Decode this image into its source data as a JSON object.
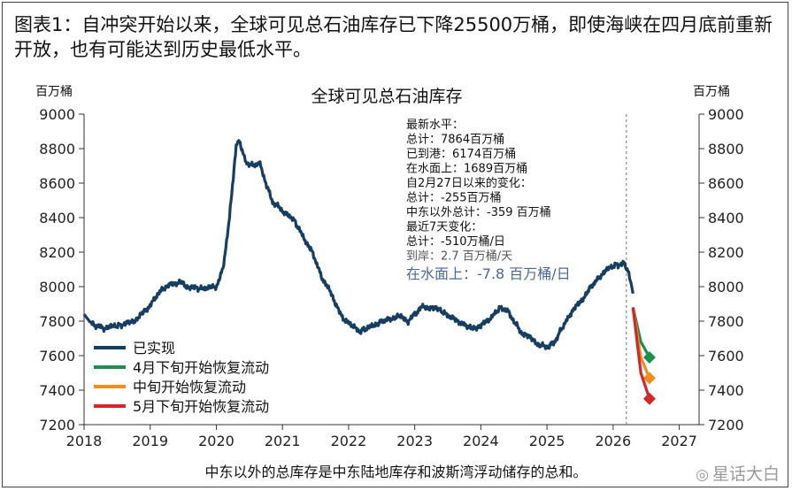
{
  "header": {
    "line1": "图表1：自冲突开始以来，全球可见总石油库存已下降25500万桶，即使海峡在四月底前重新",
    "line2": "开放，也有可能达到历史最低水平。"
  },
  "footnote": "中东以外的总库存是中东陆地库存和波斯湾浮动储存的总和。",
  "watermark": "星话大白",
  "chart_data": {
    "type": "line",
    "title": "全球可见总石油库存",
    "ylabel_left": "百万桶",
    "ylabel_right": "百万桶",
    "ylim": [
      7200,
      9000
    ],
    "yticks": [
      "7200",
      "7400",
      "7600",
      "7800",
      "8000",
      "8200",
      "8400",
      "8600",
      "8800",
      "9000"
    ],
    "xlim": [
      2018,
      2027.3
    ],
    "xticks": [
      "2018",
      "2019",
      "2020",
      "2021",
      "2022",
      "2023",
      "2024",
      "2025",
      "2026",
      "2027"
    ],
    "latest_marker_x": 2026.2,
    "legend_position": "bottom-left",
    "series": [
      {
        "name": "已实现",
        "color": "#163e63",
        "x": [
          2018.0,
          2018.1,
          2018.2,
          2018.3,
          2018.45,
          2018.6,
          2018.75,
          2018.9,
          2019.0,
          2019.1,
          2019.2,
          2019.3,
          2019.45,
          2019.55,
          2019.7,
          2019.85,
          2020.0,
          2020.1,
          2020.2,
          2020.3,
          2020.35,
          2020.4,
          2020.45,
          2020.55,
          2020.65,
          2020.75,
          2020.85,
          2020.95,
          2021.05,
          2021.15,
          2021.3,
          2021.45,
          2021.6,
          2021.75,
          2021.85,
          2021.95,
          2022.05,
          2022.15,
          2022.3,
          2022.45,
          2022.6,
          2022.75,
          2022.9,
          2023.0,
          2023.1,
          2023.25,
          2023.4,
          2023.55,
          2023.7,
          2023.85,
          2024.0,
          2024.15,
          2024.3,
          2024.4,
          2024.5,
          2024.6,
          2024.75,
          2024.9,
          2025.0,
          2025.1,
          2025.2,
          2025.35,
          2025.5,
          2025.65,
          2025.8,
          2025.95,
          2026.05,
          2026.1,
          2026.15,
          2026.2,
          2026.25,
          2026.3
        ],
        "y": [
          7840,
          7790,
          7770,
          7760,
          7770,
          7780,
          7800,
          7850,
          7890,
          7950,
          7990,
          8010,
          8030,
          8000,
          7990,
          7990,
          8000,
          8100,
          8400,
          8820,
          8850,
          8780,
          8720,
          8700,
          8720,
          8600,
          8490,
          8460,
          8420,
          8400,
          8300,
          8200,
          8050,
          7950,
          7860,
          7800,
          7780,
          7740,
          7760,
          7790,
          7810,
          7830,
          7800,
          7840,
          7880,
          7880,
          7860,
          7820,
          7790,
          7760,
          7770,
          7820,
          7880,
          7860,
          7800,
          7740,
          7700,
          7660,
          7650,
          7670,
          7740,
          7840,
          7910,
          7990,
          8060,
          8110,
          8130,
          8120,
          8140,
          8110,
          8060,
          7960
        ]
      },
      {
        "name": "4月下旬开始恢复流动",
        "color": "#1c8f4c",
        "x": [
          2026.3,
          2026.42,
          2026.55
        ],
        "y": [
          7880,
          7680,
          7590
        ]
      },
      {
        "name": "中旬开始恢复流动",
        "color": "#f28c1e",
        "x": [
          2026.3,
          2026.42,
          2026.55
        ],
        "y": [
          7880,
          7590,
          7470
        ]
      },
      {
        "name": "5月下旬开始恢复流动",
        "color": "#d2262b",
        "x": [
          2026.3,
          2026.42,
          2026.55
        ],
        "y": [
          7880,
          7500,
          7350
        ]
      }
    ],
    "annotation": {
      "lines": [
        "最新水平：",
        "总计：7864百万桶",
        "已到港：6174百万桶",
        "在水面上：1689百万桶",
        "自2月27日以来的变化：",
        "总计：-255百万桶",
        "中东以外总计：-359 百万桶",
        "最近7天变化：",
        "总计：-510万桶/日",
        "到岸：2.7 百万桶/天",
        "在水面上：-7.8 百万桶/日"
      ]
    }
  }
}
